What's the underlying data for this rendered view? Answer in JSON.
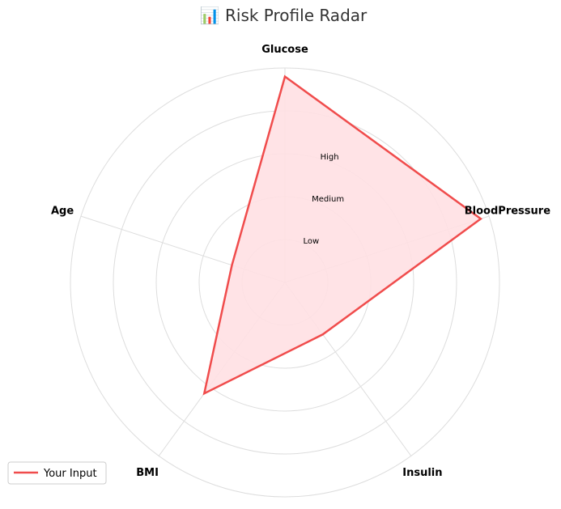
{
  "chart_data": {
    "type": "radar",
    "title": "📊 Risk Profile Radar",
    "axes": [
      "Glucose",
      "BloodPressure",
      "Insulin",
      "BMI",
      "Age"
    ],
    "ring_labels": [
      "Low",
      "Medium",
      "High"
    ],
    "rlim": [
      0,
      5
    ],
    "grid": true,
    "legend": {
      "placement": "bottom-left"
    },
    "series": [
      {
        "name": "Your Input",
        "values": [
          4.8,
          4.8,
          1.5,
          3.2,
          1.3
        ],
        "color": "#f04c4c",
        "fill": "#ffe0e3"
      }
    ]
  }
}
